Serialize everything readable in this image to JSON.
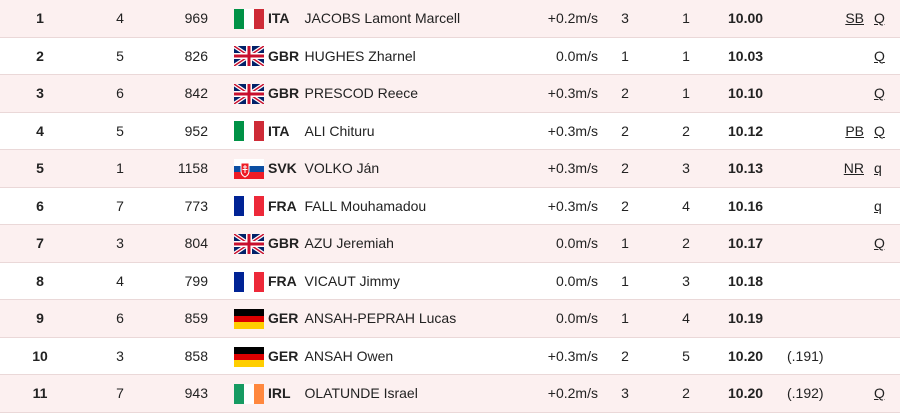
{
  "table": {
    "rows": [
      {
        "rank": "1",
        "lane": "4",
        "bib": "969",
        "country": "ITA",
        "name": "JACOBS Lamont Marcell",
        "wind": "+0.2m/s",
        "heat": "3",
        "heat_place": "1",
        "time": "10.00",
        "record": "SB",
        "qualifier": "Q"
      },
      {
        "rank": "2",
        "lane": "5",
        "bib": "826",
        "country": "GBR",
        "name": "HUGHES Zharnel",
        "wind": "0.0m/s",
        "heat": "1",
        "heat_place": "1",
        "time": "10.03",
        "qualifier": "Q"
      },
      {
        "rank": "3",
        "lane": "6",
        "bib": "842",
        "country": "GBR",
        "name": "PRESCOD Reece",
        "wind": "+0.3m/s",
        "heat": "2",
        "heat_place": "1",
        "time": "10.10",
        "qualifier": "Q"
      },
      {
        "rank": "4",
        "lane": "5",
        "bib": "952",
        "country": "ITA",
        "name": "ALI Chituru",
        "wind": "+0.3m/s",
        "heat": "2",
        "heat_place": "2",
        "time": "10.12",
        "record": "PB",
        "qualifier": "Q"
      },
      {
        "rank": "5",
        "lane": "1",
        "bib": "1158",
        "country": "SVK",
        "name": "VOLKO Ján",
        "wind": "+0.3m/s",
        "heat": "2",
        "heat_place": "3",
        "time": "10.13",
        "record": "NR",
        "qualifier": "q"
      },
      {
        "rank": "6",
        "lane": "7",
        "bib": "773",
        "country": "FRA",
        "name": "FALL Mouhamadou",
        "wind": "+0.3m/s",
        "heat": "2",
        "heat_place": "4",
        "time": "10.16",
        "qualifier": "q"
      },
      {
        "rank": "7",
        "lane": "3",
        "bib": "804",
        "country": "GBR",
        "name": "AZU Jeremiah",
        "wind": "0.0m/s",
        "heat": "1",
        "heat_place": "2",
        "time": "10.17",
        "qualifier": "Q"
      },
      {
        "rank": "8",
        "lane": "4",
        "bib": "799",
        "country": "FRA",
        "name": "VICAUT Jimmy",
        "wind": "0.0m/s",
        "heat": "1",
        "heat_place": "3",
        "time": "10.18"
      },
      {
        "rank": "9",
        "lane": "6",
        "bib": "859",
        "country": "GER",
        "name": "ANSAH-PEPRAH Lucas",
        "wind": "0.0m/s",
        "heat": "1",
        "heat_place": "4",
        "time": "10.19"
      },
      {
        "rank": "10",
        "lane": "3",
        "bib": "858",
        "country": "GER",
        "name": "ANSAH Owen",
        "wind": "+0.3m/s",
        "heat": "2",
        "heat_place": "5",
        "time": "10.20",
        "tiebreak": "(.191)"
      },
      {
        "rank": "11",
        "lane": "7",
        "bib": "943",
        "country": "IRL",
        "name": "OLATUNDE Israel",
        "wind": "+0.2m/s",
        "heat": "3",
        "heat_place": "2",
        "time": "10.20",
        "tiebreak": "(.192)",
        "qualifier": "Q"
      }
    ]
  }
}
